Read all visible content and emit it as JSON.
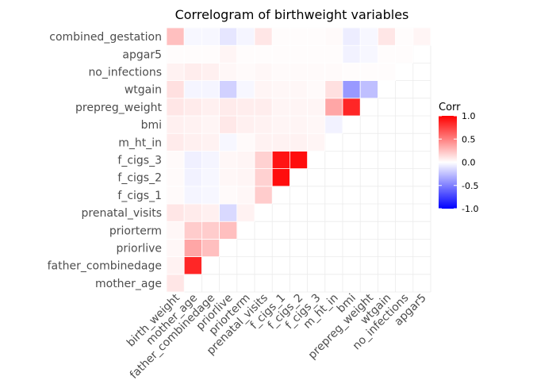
{
  "chart_data": {
    "type": "heatmap",
    "title": "Correlogram of birthweight variables",
    "xlabel": "",
    "ylabel": "",
    "x_labels": [
      "birth_weight",
      "mother_age",
      "father_combinedage",
      "priorlive",
      "priorterm",
      "prenatal_visits",
      "f_cigs_1",
      "f_cigs_2",
      "f_cigs_3",
      "m_ht_in",
      "bmi",
      "prepreg_weight",
      "wtgain",
      "no_infections",
      "apgar5"
    ],
    "y_labels": [
      "mother_age",
      "father_combinedage",
      "priorlive",
      "priorterm",
      "prenatal_visits",
      "f_cigs_1",
      "f_cigs_2",
      "f_cigs_3",
      "m_ht_in",
      "bmi",
      "prepreg_weight",
      "wtgain",
      "no_infections",
      "apgar5",
      "combined_gestation"
    ],
    "values": [
      [
        0.1
      ],
      [
        0.05,
        0.85
      ],
      [
        0.03,
        0.35,
        0.25
      ],
      [
        0.03,
        0.2,
        0.2,
        0.25
      ],
      [
        0.1,
        0.08,
        0.06,
        -0.15,
        0.05
      ],
      [
        0.02,
        -0.04,
        -0.03,
        0.02,
        0.03,
        0.2
      ],
      [
        0.02,
        -0.05,
        -0.03,
        0.03,
        0.04,
        0.18,
        0.95
      ],
      [
        0.02,
        -0.06,
        -0.04,
        0.03,
        0.04,
        0.18,
        0.92,
        0.95
      ],
      [
        0.08,
        0.06,
        0.05,
        -0.03,
        0.02,
        0.05,
        0.05,
        0.05,
        0.04
      ],
      [
        0.06,
        0.05,
        0.04,
        0.09,
        0.06,
        0.05,
        0.04,
        0.04,
        0.03,
        -0.05
      ],
      [
        0.1,
        0.08,
        0.06,
        0.08,
        0.07,
        0.07,
        0.04,
        0.04,
        0.04,
        0.35,
        0.85
      ],
      [
        0.12,
        -0.04,
        -0.04,
        -0.18,
        -0.03,
        0.04,
        0.03,
        0.03,
        0.02,
        0.12,
        -0.4,
        -0.25
      ],
      [
        0.05,
        0.07,
        0.06,
        0.03,
        0.02,
        0.03,
        0.02,
        0.02,
        0.02,
        0.02,
        0.01,
        0.01,
        0.01
      ],
      [
        0.01,
        0.01,
        0.01,
        0.04,
        0.01,
        0.01,
        0.01,
        0.01,
        0.01,
        0.01,
        -0.05,
        -0.03,
        0.01,
        0.01
      ],
      [
        0.25,
        -0.03,
        -0.03,
        -0.1,
        -0.04,
        0.1,
        0.01,
        0.01,
        0.01,
        0.02,
        -0.07,
        -0.03,
        0.1,
        0.01,
        0.04
      ]
    ],
    "legend": {
      "title": "Corr",
      "ticks": [
        "1.0",
        "0.5",
        "0.0",
        "-0.5",
        "-1.0"
      ],
      "tick_values": [
        1.0,
        0.5,
        0.0,
        -0.5,
        -1.0
      ],
      "position": "right"
    },
    "colors": {
      "low": "#0000FF",
      "mid": "#FFFFFF",
      "high": "#FF0000"
    },
    "grid": true
  }
}
